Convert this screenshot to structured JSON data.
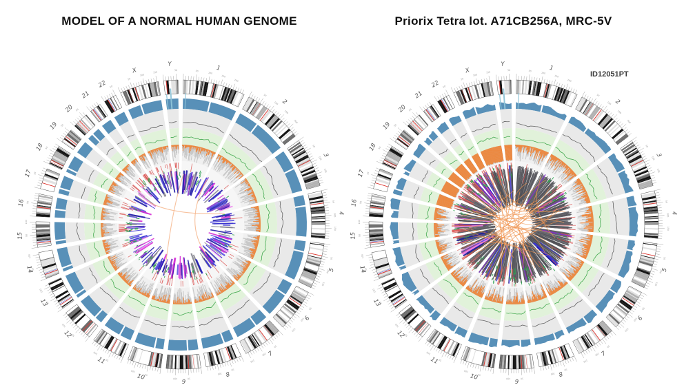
{
  "page": {
    "background": "#ffffff"
  },
  "chart_data": {
    "type": "circos",
    "layout": {
      "gap_deg": 2.1,
      "band_seed": 7,
      "tick_minor_mb": 10,
      "tick_major_mb": 50
    },
    "radii": {
      "label": 231,
      "tick_in": 212,
      "tick_minor_out": 216,
      "tick_major_out": 219,
      "tick_text": 223,
      "ideo_out": 210,
      "ideo_in": 190,
      "blue_out": 183,
      "blue_in": 168,
      "gray_out": 168,
      "gray_in": 140,
      "green_out": 140,
      "green_in": 116,
      "hist_out": 116,
      "hist_in": 92,
      "scatter_out": 92,
      "scatter_in": 58,
      "red_tick_start": 90
    },
    "colors": {
      "tick": "#999999",
      "label": "#555555",
      "ideo_border": "#4a4a4a",
      "ideo_shades": [
        "#ffffff",
        "#e2e2e2",
        "#b2b2b2",
        "#6e6e6e",
        "#161616"
      ],
      "ideo_red": "#dd3a34",
      "ideo_blue": "#6b79d6",
      "blue_ring": "#5890b8",
      "blue_spike": "#8fc4d8",
      "gray_bg": "#e9e9e9",
      "gray_line": "#545454",
      "green_bg": "#e1f2da",
      "green_line": "#3aa548",
      "hist_bg": "#f0f0f0",
      "hist_gray": "#c7c7c7",
      "hist_orange": "#f08232",
      "scatter_bg": "#f6f6f6",
      "red_tick": "#dc5553",
      "green_tick": "#2fa352",
      "spoke_palette": [
        "#1d18a8",
        "#3a34d4",
        "#5a50e0",
        "#8130c8",
        "#d42ad4",
        "#ef80ef",
        "#83838d"
      ],
      "spoke_grays": [
        "#4f4f55",
        "#5a5a60",
        "#68686e"
      ]
    },
    "chromosomes": [
      {
        "name": "1",
        "size": 249,
        "cen": 0.5
      },
      {
        "name": "2",
        "size": 242,
        "cen": 0.38
      },
      {
        "name": "3",
        "size": 198,
        "cen": 0.46
      },
      {
        "name": "4",
        "size": 190,
        "cen": 0.26
      },
      {
        "name": "5",
        "size": 182,
        "cen": 0.27
      },
      {
        "name": "6",
        "size": 171,
        "cen": 0.35
      },
      {
        "name": "7",
        "size": 159,
        "cen": 0.38
      },
      {
        "name": "8",
        "size": 145,
        "cen": 0.31
      },
      {
        "name": "9",
        "size": 138,
        "cen": 0.35
      },
      {
        "name": "10",
        "size": 134,
        "cen": 0.3
      },
      {
        "name": "11",
        "size": 135,
        "cen": 0.4
      },
      {
        "name": "12",
        "size": 133,
        "cen": 0.27
      },
      {
        "name": "13",
        "size": 114,
        "cen": 0.15
      },
      {
        "name": "14",
        "size": 107,
        "cen": 0.16
      },
      {
        "name": "15",
        "size": 102,
        "cen": 0.17
      },
      {
        "name": "16",
        "size": 90,
        "cen": 0.41
      },
      {
        "name": "17",
        "size": 83,
        "cen": 0.29
      },
      {
        "name": "18",
        "size": 80,
        "cen": 0.22
      },
      {
        "name": "19",
        "size": 59,
        "cen": 0.44
      },
      {
        "name": "20",
        "size": 64,
        "cen": 0.44
      },
      {
        "name": "21",
        "size": 47,
        "cen": 0.26
      },
      {
        "name": "22",
        "size": 51,
        "cen": 0.29
      },
      {
        "name": "X",
        "size": 156,
        "cen": 0.39
      },
      {
        "name": "Y",
        "size": 57,
        "cen": 0.18
      }
    ],
    "acrocentric": [
      "13",
      "14",
      "15",
      "21",
      "22"
    ],
    "figures": [
      {
        "title": "MODEL OF A NORMAL HUMAN GENOME",
        "annotation": "",
        "seed": 11,
        "blue_style": "flat",
        "hist": {
          "base_intensity": 0.45,
          "full_chroms": []
        },
        "red_ticks": {
          "count": 85,
          "len_min": 5,
          "len_max": 20
        },
        "green_ticks": {
          "count": 120,
          "r_min": 60,
          "r_max": 80
        },
        "spokes": {
          "style": "colored",
          "step_deg": 1.5,
          "outer": 80,
          "outer_jit": 8,
          "inner_min": 42,
          "inner_max": 66,
          "colored_extra": 0
        },
        "center_links": {
          "count": 3,
          "color": "#f5b285",
          "width": 1.1,
          "opacity": 0.8,
          "r_min": 50,
          "r_max": 80
        }
      },
      {
        "title": "Priorix Tetra lot. A71CB256A, MRC-5V",
        "annotation": "ID12051PT",
        "seed": 77,
        "blue_style": "wavy",
        "hist": {
          "base_intensity": 0.72,
          "full_chroms": [
            "17",
            "18",
            "19",
            "20",
            "21",
            "22",
            "X",
            "Y"
          ]
        },
        "red_ticks": {
          "count": 120,
          "len_min": 8,
          "len_max": 30
        },
        "green_ticks": {
          "count": 150,
          "r_min": 62,
          "r_max": 88
        },
        "spokes": {
          "style": "dense-gray",
          "step_deg": 0.45,
          "outer": 86,
          "outer_jit": 8,
          "inner_min": 26,
          "inner_max": 42,
          "colored_extra": 42
        },
        "center_links": {
          "count": 42,
          "color": "#f0934e",
          "width": 0.9,
          "opacity": 0.7,
          "r_min": 30,
          "r_max": 85
        }
      }
    ]
  }
}
